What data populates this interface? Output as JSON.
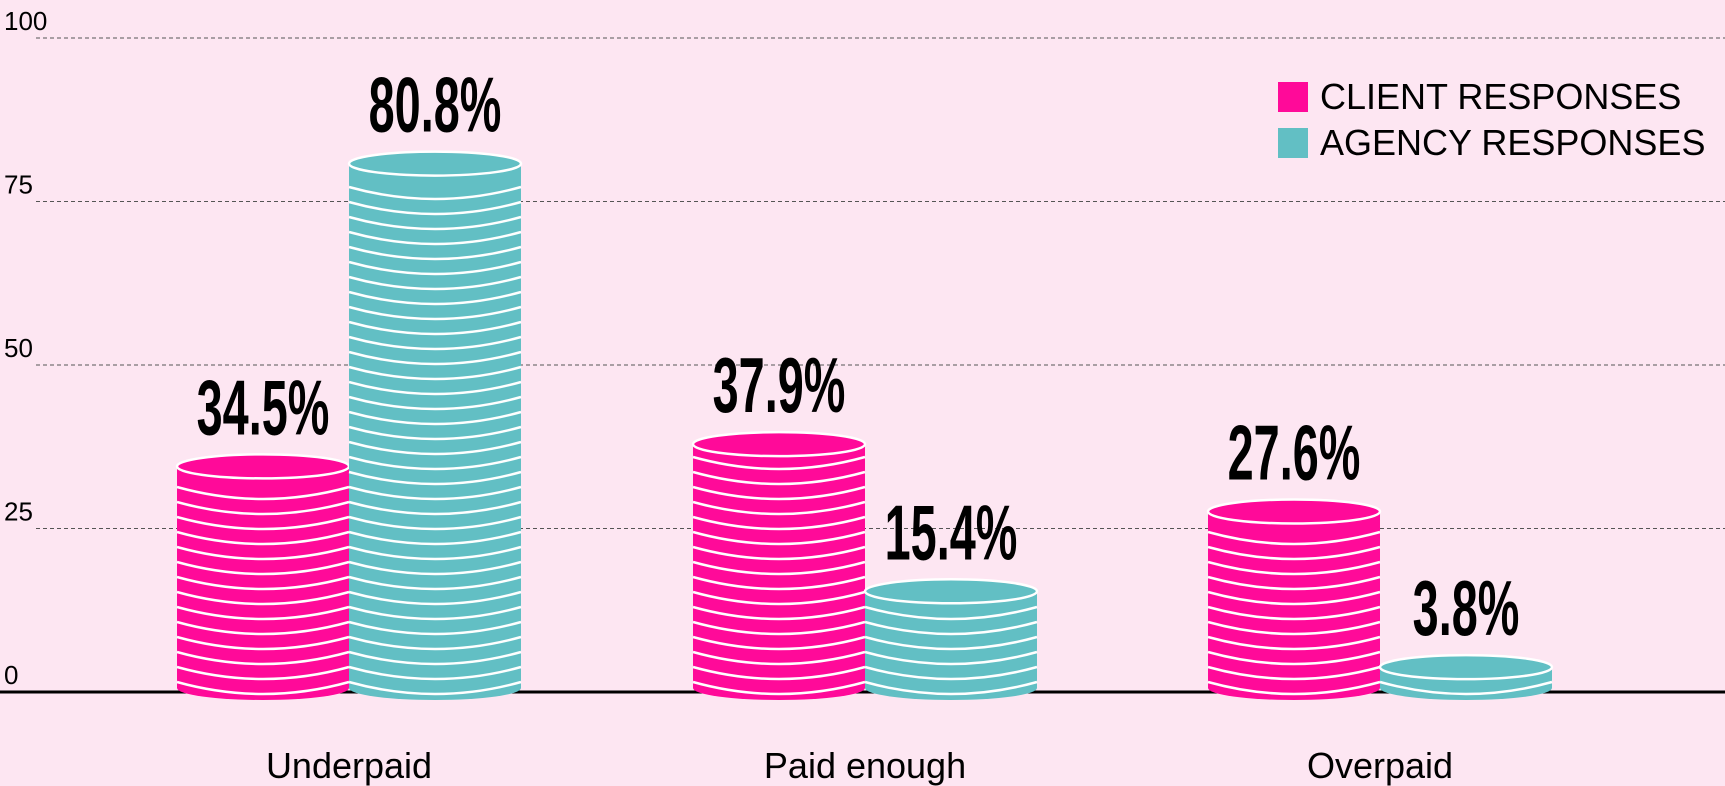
{
  "chart_data": {
    "type": "bar",
    "categories": [
      "Underpaid",
      "Paid enough",
      "Overpaid"
    ],
    "series": [
      {
        "name": "CLIENT RESPONSES",
        "color": "#ff0a99",
        "values": [
          34.5,
          37.9,
          27.6
        ],
        "value_labels": [
          "34.5%",
          "37.9%",
          "27.6%"
        ]
      },
      {
        "name": "AGENCY RESPONSES",
        "color": "#62bfc4",
        "values": [
          80.8,
          15.4,
          3.8
        ],
        "value_labels": [
          "80.8%",
          "15.4%",
          "3.8%"
        ]
      }
    ],
    "ylim": [
      0,
      100
    ],
    "yticks": [
      0,
      25,
      50,
      75,
      100
    ],
    "grid": true,
    "legend": "top-right"
  }
}
